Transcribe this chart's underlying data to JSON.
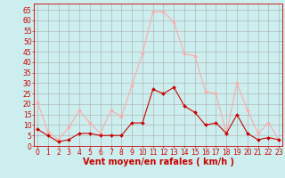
{
  "hours": [
    0,
    1,
    2,
    3,
    4,
    5,
    6,
    7,
    8,
    9,
    10,
    11,
    12,
    13,
    14,
    15,
    16,
    17,
    18,
    19,
    20,
    21,
    22,
    23
  ],
  "wind_avg": [
    8,
    5,
    2,
    3,
    6,
    6,
    5,
    5,
    5,
    11,
    11,
    27,
    25,
    28,
    19,
    16,
    10,
    11,
    6,
    15,
    6,
    3,
    4,
    3
  ],
  "wind_gust": [
    21,
    7,
    3,
    9,
    17,
    11,
    6,
    17,
    14,
    29,
    44,
    64,
    64,
    59,
    44,
    43,
    26,
    25,
    6,
    30,
    17,
    6,
    11,
    3
  ],
  "color_avg": "#cc0000",
  "color_gust": "#ffaaaa",
  "bg_color": "#cceeee",
  "grid_color": "#aaaaaa",
  "xlabel": "Vent moyen/en rafales ( km/h )",
  "ylabel_ticks": [
    0,
    5,
    10,
    15,
    20,
    25,
    30,
    35,
    40,
    45,
    50,
    55,
    60,
    65
  ],
  "ylim": [
    0,
    68
  ],
  "xlim": [
    -0.3,
    23.3
  ],
  "tick_color": "#cc0000",
  "label_color": "#cc0000",
  "font_size_tick": 5.5,
  "font_size_xlabel": 7.0,
  "line_width": 0.8,
  "marker_size": 2.0
}
